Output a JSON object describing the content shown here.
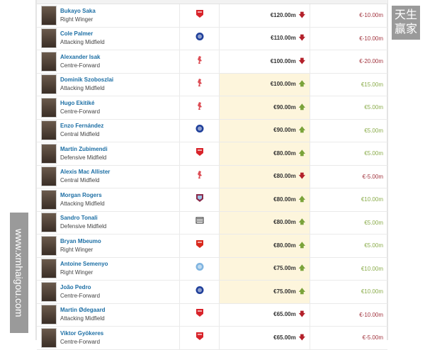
{
  "players": [
    {
      "name": "Bukayo Saka",
      "position": "Right Winger",
      "club": "arsenal",
      "value": "€120.00m",
      "trend": "down",
      "change": "€-10.00m",
      "highlight": false
    },
    {
      "name": "Cole Palmer",
      "position": "Attacking Midfield",
      "club": "chelsea",
      "value": "€110.00m",
      "trend": "down",
      "change": "€-10.00m",
      "highlight": false
    },
    {
      "name": "Alexander Isak",
      "position": "Centre-Forward",
      "club": "liverpool",
      "value": "€100.00m",
      "trend": "down",
      "change": "€-20.00m",
      "highlight": false
    },
    {
      "name": "Dominik Szoboszlai",
      "position": "Attacking Midfield",
      "club": "liverpool",
      "value": "€100.00m",
      "trend": "up",
      "change": "€15.00m",
      "highlight": true
    },
    {
      "name": "Hugo Ekitiké",
      "position": "Centre-Forward",
      "club": "liverpool",
      "value": "€90.00m",
      "trend": "up",
      "change": "€5.00m",
      "highlight": true
    },
    {
      "name": "Enzo Fernández",
      "position": "Central Midfield",
      "club": "chelsea",
      "value": "€90.00m",
      "trend": "up",
      "change": "€5.00m",
      "highlight": true
    },
    {
      "name": "Martín Zubimendi",
      "position": "Defensive Midfield",
      "club": "arsenal",
      "value": "€80.00m",
      "trend": "up",
      "change": "€5.00m",
      "highlight": true
    },
    {
      "name": "Alexis Mac Allister",
      "position": "Central Midfield",
      "club": "liverpool",
      "value": "€80.00m",
      "trend": "down",
      "change": "€-5.00m",
      "highlight": true
    },
    {
      "name": "Morgan Rogers",
      "position": "Attacking Midfield",
      "club": "aston-villa",
      "value": "€80.00m",
      "trend": "up",
      "change": "€10.00m",
      "highlight": true
    },
    {
      "name": "Sandro Tonali",
      "position": "Defensive Midfield",
      "club": "newcastle",
      "value": "€80.00m",
      "trend": "up",
      "change": "€5.00m",
      "highlight": true
    },
    {
      "name": "Bryan Mbeumo",
      "position": "Right Winger",
      "club": "man-utd",
      "value": "€80.00m",
      "trend": "up",
      "change": "€5.00m",
      "highlight": true
    },
    {
      "name": "Antoine Semenyo",
      "position": "Right Winger",
      "club": "man-city",
      "value": "€75.00m",
      "trend": "up",
      "change": "€10.00m",
      "highlight": true
    },
    {
      "name": "João Pedro",
      "position": "Centre-Forward",
      "club": "chelsea",
      "value": "€75.00m",
      "trend": "up",
      "change": "€10.00m",
      "highlight": true
    },
    {
      "name": "Martin Ødegaard",
      "position": "Attacking Midfield",
      "club": "arsenal",
      "value": "€65.00m",
      "trend": "down",
      "change": "€-10.00m",
      "highlight": false
    },
    {
      "name": "Viktor Gyökeres",
      "position": "Centre-Forward",
      "club": "arsenal",
      "value": "€65.00m",
      "trend": "down",
      "change": "€-5.00m",
      "highlight": false
    }
  ],
  "club_colors": {
    "arsenal": "#d8232a",
    "chelsea": "#1f3f9a",
    "liverpool": "#d7303a",
    "aston-villa": "#8a2a4a",
    "newcastle": "#222222",
    "man-utd": "#d9281c",
    "man-city": "#7fb4e0"
  },
  "trend_colors": {
    "up": "#7aa33a",
    "down": "#b3202a"
  },
  "watermarks": {
    "top_right": "天生赢家",
    "bottom_left": "www.xmhaigou.com"
  }
}
